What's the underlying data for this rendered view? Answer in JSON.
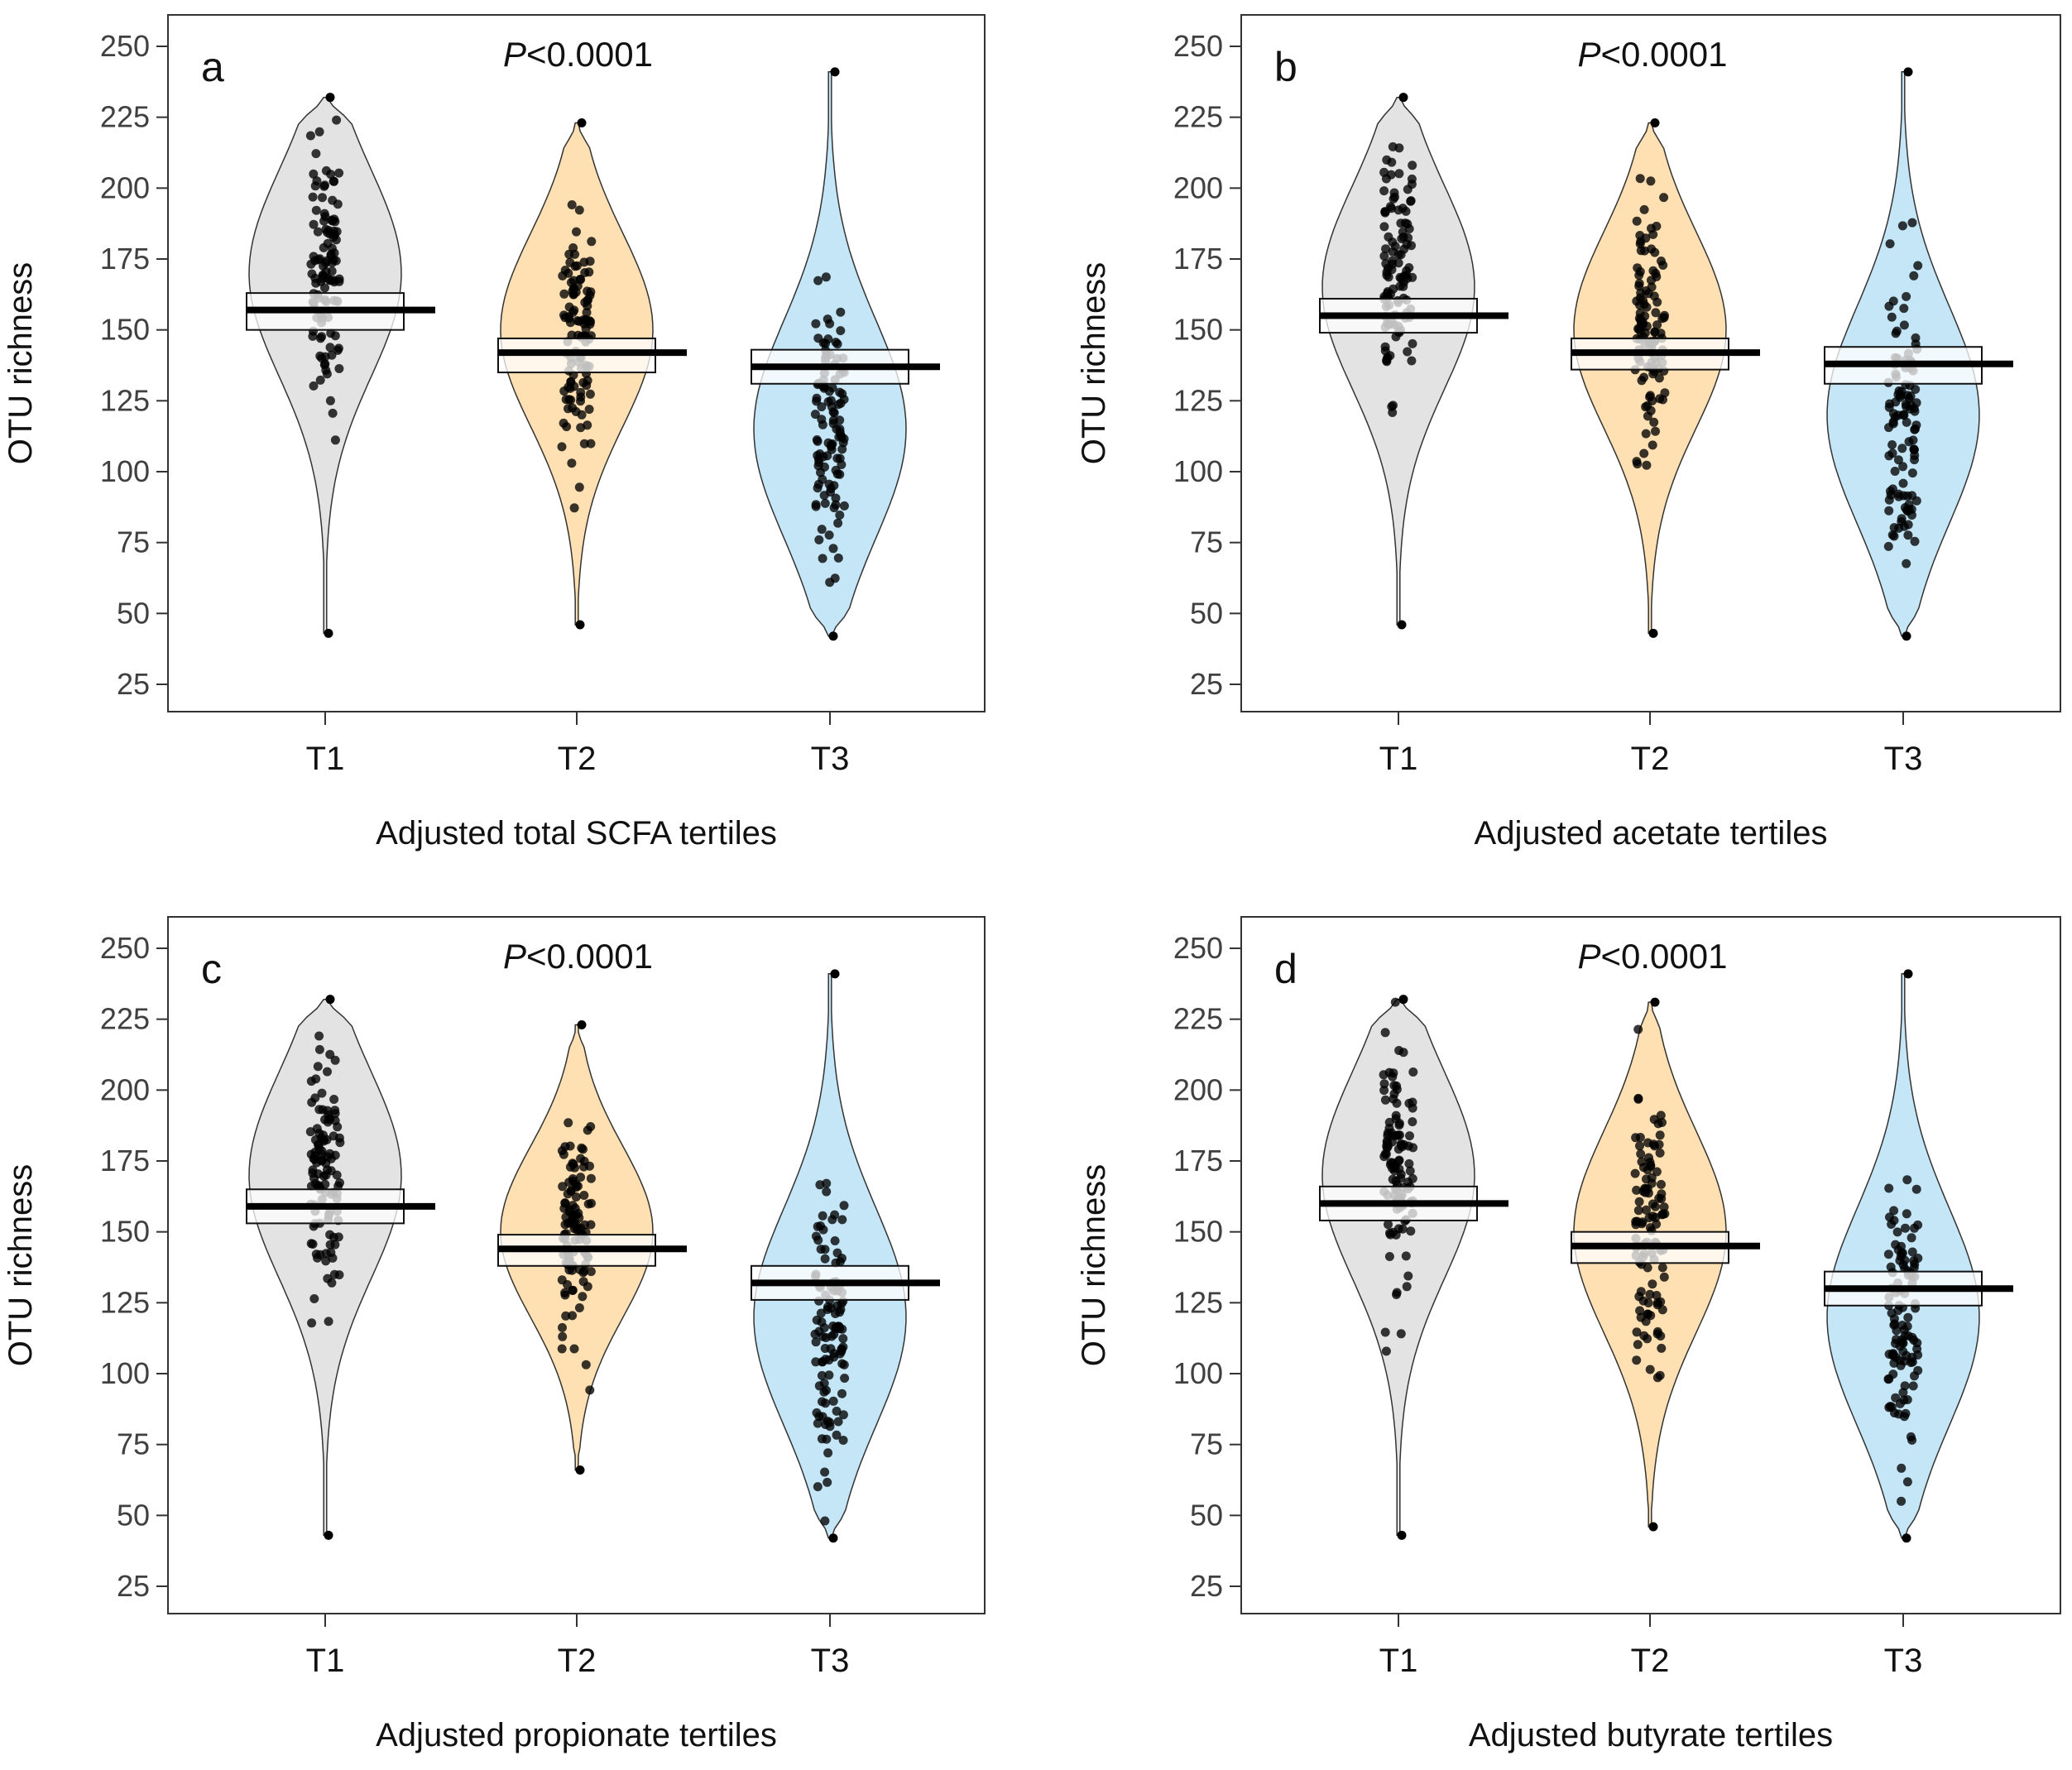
{
  "figure": {
    "colors": {
      "T1": "#e3e3e3",
      "T2": "#fee0b3",
      "T3": "#c5e6f6",
      "point": "#000000",
      "mean_line": "#000000",
      "frame": "#333333"
    }
  },
  "chart_data": [
    {
      "type": "pirate",
      "panel_label": "a",
      "annotation": {
        "prefix": "P",
        "text": "<0.0001"
      },
      "title": "",
      "xlabel": "Adjusted total SCFA tertiles",
      "ylabel": "OTU richness",
      "ylim": [
        20,
        255
      ],
      "yticks": [
        25,
        50,
        75,
        100,
        125,
        150,
        175,
        200,
        225,
        250
      ],
      "categories": [
        "T1",
        "T2",
        "T3"
      ],
      "series": [
        {
          "name": "T1",
          "mean": 157,
          "ci": [
            150,
            163
          ],
          "min": 43,
          "max": 232,
          "peak": 170
        },
        {
          "name": "T2",
          "mean": 142,
          "ci": [
            135,
            147
          ],
          "min": 46,
          "max": 223,
          "peak": 150
        },
        {
          "name": "T3",
          "mean": 137,
          "ci": [
            131,
            143
          ],
          "min": 42,
          "max": 241,
          "peak": 115
        }
      ]
    },
    {
      "type": "pirate",
      "panel_label": "b",
      "annotation": {
        "prefix": "P",
        "text": "<0.0001"
      },
      "title": "",
      "xlabel": "Adjusted acetate tertiles",
      "ylabel": "OTU richness",
      "ylim": [
        20,
        255
      ],
      "yticks": [
        25,
        50,
        75,
        100,
        125,
        150,
        175,
        200,
        225,
        250
      ],
      "categories": [
        "T1",
        "T2",
        "T3"
      ],
      "series": [
        {
          "name": "T1",
          "mean": 155,
          "ci": [
            149,
            161
          ],
          "min": 46,
          "max": 232,
          "peak": 165
        },
        {
          "name": "T2",
          "mean": 142,
          "ci": [
            136,
            147
          ],
          "min": 43,
          "max": 223,
          "peak": 150
        },
        {
          "name": "T3",
          "mean": 138,
          "ci": [
            131,
            144
          ],
          "min": 42,
          "max": 241,
          "peak": 120
        }
      ]
    },
    {
      "type": "pirate",
      "panel_label": "c",
      "annotation": {
        "prefix": "P",
        "text": "<0.0001"
      },
      "title": "",
      "xlabel": "Adjusted propionate tertiles",
      "ylabel": "OTU richness",
      "ylim": [
        20,
        255
      ],
      "yticks": [
        25,
        50,
        75,
        100,
        125,
        150,
        175,
        200,
        225,
        250
      ],
      "categories": [
        "T1",
        "T2",
        "T3"
      ],
      "series": [
        {
          "name": "T1",
          "mean": 159,
          "ci": [
            153,
            165
          ],
          "min": 43,
          "max": 232,
          "peak": 170
        },
        {
          "name": "T2",
          "mean": 144,
          "ci": [
            138,
            149
          ],
          "min": 66,
          "max": 223,
          "peak": 150
        },
        {
          "name": "T3",
          "mean": 132,
          "ci": [
            126,
            138
          ],
          "min": 42,
          "max": 241,
          "peak": 120
        }
      ]
    },
    {
      "type": "pirate",
      "panel_label": "d",
      "annotation": {
        "prefix": "P",
        "text": "<0.0001"
      },
      "title": "",
      "xlabel": "Adjusted butyrate tertiles",
      "ylabel": "OTU richness",
      "ylim": [
        20,
        255
      ],
      "yticks": [
        25,
        50,
        75,
        100,
        125,
        150,
        175,
        200,
        225,
        250
      ],
      "categories": [
        "T1",
        "T2",
        "T3"
      ],
      "series": [
        {
          "name": "T1",
          "mean": 160,
          "ci": [
            154,
            166
          ],
          "min": 43,
          "max": 232,
          "peak": 170
        },
        {
          "name": "T2",
          "mean": 145,
          "ci": [
            139,
            150
          ],
          "min": 46,
          "max": 231,
          "peak": 150
        },
        {
          "name": "T3",
          "mean": 130,
          "ci": [
            124,
            136
          ],
          "min": 42,
          "max": 241,
          "peak": 120
        }
      ]
    }
  ]
}
